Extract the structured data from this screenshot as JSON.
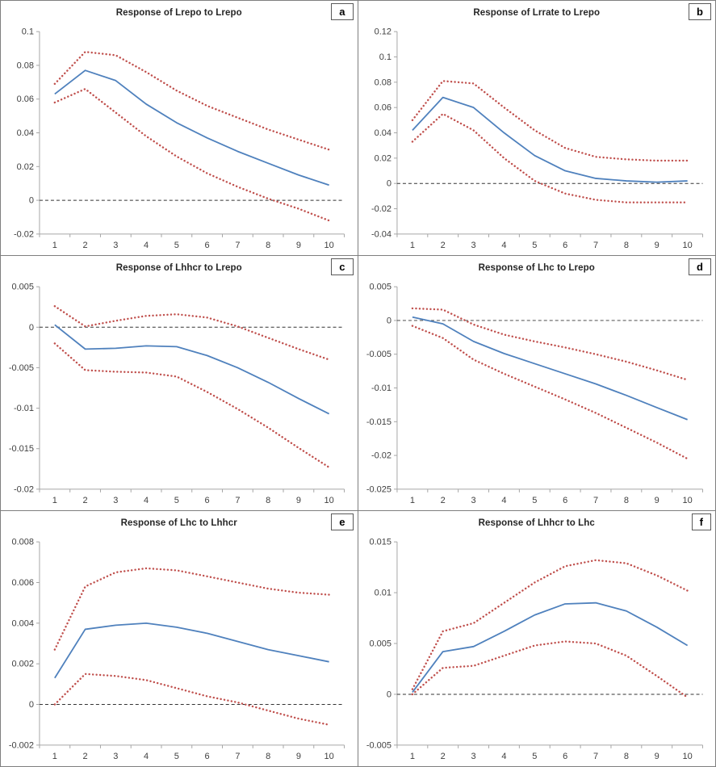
{
  "figure": {
    "line_color": "#4f81bd",
    "band_color": "#c0504d",
    "axis_color": "#a6a6a6",
    "zero_line_color": "#333333",
    "border_color": "#7f7f7f",
    "tick_label_color": "#404040"
  },
  "chart_data": [
    {
      "type": "line",
      "title": "Response of Lrepo to Lrepo",
      "panel_label": "a",
      "x": [
        1,
        2,
        3,
        4,
        5,
        6,
        7,
        8,
        9,
        10
      ],
      "ylim": [
        -0.02,
        0.1
      ],
      "ytick": 0.02,
      "grid": false,
      "legend": "none",
      "series": [
        {
          "name": "response",
          "style": "solid",
          "values": [
            0.063,
            0.077,
            0.071,
            0.057,
            0.046,
            0.037,
            0.029,
            0.022,
            0.015,
            0.009
          ]
        },
        {
          "name": "upper-confidence-band",
          "style": "dotted",
          "values": [
            0.069,
            0.088,
            0.086,
            0.076,
            0.065,
            0.056,
            0.049,
            0.042,
            0.036,
            0.03
          ]
        },
        {
          "name": "lower-confidence-band",
          "style": "dotted",
          "values": [
            0.058,
            0.066,
            0.052,
            0.038,
            0.026,
            0.016,
            0.008,
            0.001,
            -0.005,
            -0.012
          ]
        }
      ]
    },
    {
      "type": "line",
      "title": "Response of Lrrate to Lrepo",
      "panel_label": "b",
      "x": [
        1,
        2,
        3,
        4,
        5,
        6,
        7,
        8,
        9,
        10
      ],
      "ylim": [
        -0.04,
        0.12
      ],
      "ytick": 0.02,
      "grid": false,
      "legend": "none",
      "series": [
        {
          "name": "response",
          "style": "solid",
          "values": [
            0.042,
            0.068,
            0.06,
            0.04,
            0.022,
            0.01,
            0.004,
            0.002,
            0.001,
            0.002
          ]
        },
        {
          "name": "upper-confidence-band",
          "style": "dotted",
          "values": [
            0.05,
            0.081,
            0.079,
            0.06,
            0.042,
            0.028,
            0.021,
            0.019,
            0.018,
            0.018
          ]
        },
        {
          "name": "lower-confidence-band",
          "style": "dotted",
          "values": [
            0.033,
            0.055,
            0.042,
            0.02,
            0.002,
            -0.008,
            -0.013,
            -0.015,
            -0.015,
            -0.015
          ]
        }
      ]
    },
    {
      "type": "line",
      "title": "Response of Lhhcr to Lrepo",
      "panel_label": "c",
      "x": [
        1,
        2,
        3,
        4,
        5,
        6,
        7,
        8,
        9,
        10
      ],
      "ylim": [
        -0.02,
        0.005
      ],
      "ytick": 0.005,
      "grid": false,
      "legend": "none",
      "series": [
        {
          "name": "response",
          "style": "solid",
          "values": [
            0.0003,
            -0.0027,
            -0.0026,
            -0.0023,
            -0.0024,
            -0.0035,
            -0.005,
            -0.0068,
            -0.0088,
            -0.0107
          ]
        },
        {
          "name": "upper-confidence-band",
          "style": "dotted",
          "values": [
            0.0026,
            0.0001,
            0.0008,
            0.0014,
            0.0016,
            0.0012,
            0.0001,
            -0.0013,
            -0.0027,
            -0.004
          ]
        },
        {
          "name": "lower-confidence-band",
          "style": "dotted",
          "values": [
            -0.002,
            -0.0053,
            -0.0055,
            -0.0056,
            -0.0061,
            -0.008,
            -0.0101,
            -0.0124,
            -0.0149,
            -0.0173
          ]
        }
      ]
    },
    {
      "type": "line",
      "title": "Response of Lhc to Lrepo",
      "panel_label": "d",
      "x": [
        1,
        2,
        3,
        4,
        5,
        6,
        7,
        8,
        9,
        10
      ],
      "ylim": [
        -0.025,
        0.005
      ],
      "ytick": 0.005,
      "grid": false,
      "legend": "none",
      "series": [
        {
          "name": "response",
          "style": "solid",
          "values": [
            0.0005,
            -0.0005,
            -0.0031,
            -0.0049,
            -0.0064,
            -0.0079,
            -0.0094,
            -0.0111,
            -0.0129,
            -0.0147
          ]
        },
        {
          "name": "upper-confidence-band",
          "style": "dotted",
          "values": [
            0.0018,
            0.0016,
            -0.0006,
            -0.0021,
            -0.0031,
            -0.004,
            -0.005,
            -0.0061,
            -0.0074,
            -0.0088
          ]
        },
        {
          "name": "lower-confidence-band",
          "style": "dotted",
          "values": [
            -0.0008,
            -0.0026,
            -0.0058,
            -0.0079,
            -0.0098,
            -0.0117,
            -0.0137,
            -0.0159,
            -0.0181,
            -0.0205
          ]
        }
      ]
    },
    {
      "type": "line",
      "title": "Response of Lhc to Lhhcr",
      "panel_label": "e",
      "x": [
        1,
        2,
        3,
        4,
        5,
        6,
        7,
        8,
        9,
        10
      ],
      "ylim": [
        -0.002,
        0.008
      ],
      "ytick": 0.002,
      "grid": false,
      "legend": "none",
      "series": [
        {
          "name": "response",
          "style": "solid",
          "values": [
            0.0013,
            0.0037,
            0.0039,
            0.004,
            0.0038,
            0.0035,
            0.0031,
            0.0027,
            0.0024,
            0.0021
          ]
        },
        {
          "name": "upper-confidence-band",
          "style": "dotted",
          "values": [
            0.0027,
            0.0058,
            0.0065,
            0.0067,
            0.0066,
            0.0063,
            0.006,
            0.0057,
            0.0055,
            0.0054
          ]
        },
        {
          "name": "lower-confidence-band",
          "style": "dotted",
          "values": [
            0.0,
            0.0015,
            0.0014,
            0.0012,
            0.0008,
            0.0004,
            0.0001,
            -0.0003,
            -0.0007,
            -0.001
          ]
        }
      ]
    },
    {
      "type": "line",
      "title": "Response of Lhhcr to Lhc",
      "panel_label": "f",
      "x": [
        1,
        2,
        3,
        4,
        5,
        6,
        7,
        8,
        9,
        10
      ],
      "ylim": [
        -0.005,
        0.015
      ],
      "ytick": 0.005,
      "grid": false,
      "legend": "none",
      "series": [
        {
          "name": "response",
          "style": "solid",
          "values": [
            0.0002,
            0.0042,
            0.0047,
            0.0062,
            0.0078,
            0.0089,
            0.009,
            0.0082,
            0.0066,
            0.0048
          ]
        },
        {
          "name": "upper-confidence-band",
          "style": "dotted",
          "values": [
            0.0005,
            0.0062,
            0.007,
            0.009,
            0.011,
            0.0126,
            0.0132,
            0.0129,
            0.0117,
            0.0102
          ]
        },
        {
          "name": "lower-confidence-band",
          "style": "dotted",
          "values": [
            0.0,
            0.0026,
            0.0028,
            0.0038,
            0.0048,
            0.0052,
            0.005,
            0.0038,
            0.0018,
            -0.0003
          ]
        }
      ]
    }
  ]
}
